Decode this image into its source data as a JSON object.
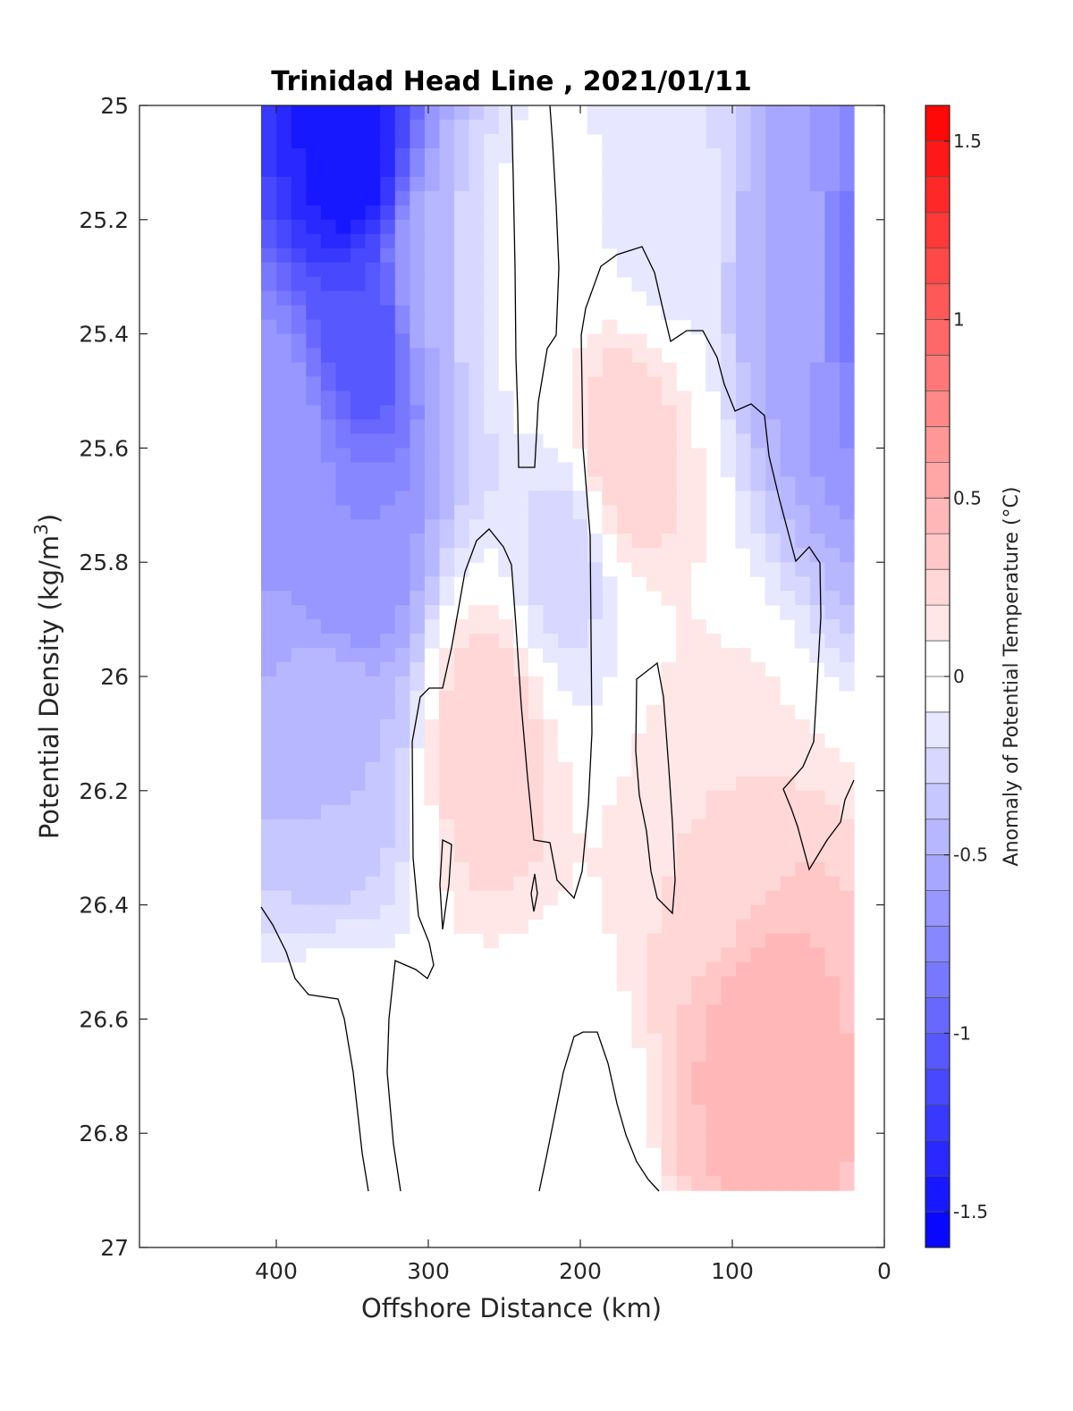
{
  "chart_data": {
    "type": "contourf",
    "title": "Trinidad Head Line , 2021/01/11",
    "xlabel": "Offshore Distance (km)",
    "ylabel_main": "Potential Density (kg/m",
    "ylabel_sup": "3",
    "ylabel_close": ")",
    "colorbar_label": "Anomaly of Potential Temperature (°C)",
    "x_reversed": true,
    "xlim": [
      0,
      490
    ],
    "ylim": [
      25,
      27
    ],
    "y_reversed": true,
    "xticks": [
      400,
      300,
      200,
      100,
      0
    ],
    "xtick_labels": [
      "400",
      "300",
      "200",
      "100",
      "0"
    ],
    "yticks": [
      25,
      25.2,
      25.4,
      25.6,
      25.8,
      26,
      26.2,
      26.4,
      26.6,
      26.8,
      27
    ],
    "ytick_labels": [
      "25",
      "25.2",
      "25.4",
      "25.6",
      "25.8",
      "26",
      "26.2",
      "26.4",
      "26.6",
      "26.8",
      "27"
    ],
    "clim": [
      -1.6,
      1.6
    ],
    "level_step": 0.1,
    "colorbar_ticks": [
      1.5,
      1,
      0.5,
      0,
      -0.5,
      -1,
      -1.5
    ],
    "colorbar_tick_labels": [
      "1.5",
      "1",
      "0.5",
      "0",
      "-0.5",
      "-1",
      "-1.5"
    ],
    "colormap": {
      "low": "#0000ff",
      "mid": "#ffffff",
      "high": "#ff0000"
    },
    "contour_lines_at": 0,
    "data_extent": {
      "x": [
        20,
        410
      ],
      "y": [
        25,
        26.9
      ]
    },
    "anomaly_features": [
      {
        "x": 350,
        "y": 25.1,
        "value": -1.5
      },
      {
        "x": 340,
        "y": 25.4,
        "value": -1.1
      },
      {
        "x": 350,
        "y": 25.8,
        "value": -0.7
      },
      {
        "x": 360,
        "y": 26.1,
        "value": -0.4
      },
      {
        "x": 400,
        "y": 25.6,
        "value": -0.6
      },
      {
        "x": 300,
        "y": 25.3,
        "value": -0.5
      },
      {
        "x": 270,
        "y": 25.3,
        "value": -0.2
      },
      {
        "x": 235,
        "y": 25.3,
        "value": 0.1
      },
      {
        "x": 210,
        "y": 25.8,
        "value": -0.25
      },
      {
        "x": 172,
        "y": 25.6,
        "value": 0.3
      },
      {
        "x": 260,
        "y": 26.1,
        "value": 0.3
      },
      {
        "x": 85,
        "y": 26.65,
        "value": 0.45
      },
      {
        "x": 120,
        "y": 26.3,
        "value": 0.2
      },
      {
        "x": 50,
        "y": 25.3,
        "value": -0.5
      },
      {
        "x": 20,
        "y": 25.3,
        "value": -0.9
      },
      {
        "x": 150,
        "y": 25.2,
        "value": -0.15
      },
      {
        "x": 215,
        "y": 26.85,
        "value": -0.1
      },
      {
        "x": 360,
        "y": 26.8,
        "value": 0.1
      }
    ]
  }
}
